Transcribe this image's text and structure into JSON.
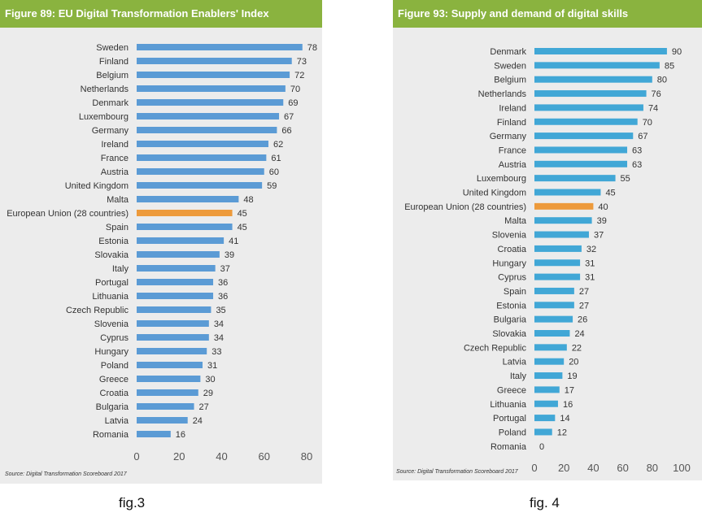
{
  "chart_data": [
    {
      "type": "bar",
      "orientation": "horizontal",
      "title": "Figure 89: EU Digital Transformation Enablers' Index",
      "source": "Source: Digital Transformation Scoreboard 2017",
      "caption": "fig.3",
      "categories": [
        "Sweden",
        "Finland",
        "Belgium",
        "Netherlands",
        "Denmark",
        "Luxembourg",
        "Germany",
        "Ireland",
        "France",
        "Austria",
        "United Kingdom",
        "Malta",
        "European Union (28 countries)",
        "Spain",
        "Estonia",
        "Slovakia",
        "Italy",
        "Portugal",
        "Lithuania",
        "Czech Republic",
        "Slovenia",
        "Cyprus",
        "Hungary",
        "Poland",
        "Greece",
        "Croatia",
        "Bulgaria",
        "Latvia",
        "Romania"
      ],
      "values": [
        78,
        73,
        72,
        70,
        69,
        67,
        66,
        62,
        61,
        60,
        59,
        48,
        45,
        45,
        41,
        39,
        37,
        36,
        36,
        35,
        34,
        34,
        33,
        31,
        30,
        29,
        27,
        24,
        16
      ],
      "highlight": "European Union (28 countries)",
      "xlim": [
        0,
        80
      ],
      "xticks": [
        0,
        20,
        40,
        60,
        80
      ],
      "bar_color": "#5b9bd5",
      "highlight_color": "#ed9a3b",
      "grid": false
    },
    {
      "type": "bar",
      "orientation": "horizontal",
      "title": "Figure 93: Supply and demand of digital skills",
      "source": "Source: Digital Transformation Scoreboard 2017",
      "caption": "fig. 4",
      "categories": [
        "Denmark",
        "Sweden",
        "Belgium",
        "Netherlands",
        "Ireland",
        "Finland",
        "Germany",
        "France",
        "Austria",
        "Luxembourg",
        "United Kingdom",
        "European Union (28 countries)",
        "Malta",
        "Slovenia",
        "Croatia",
        "Hungary",
        "Cyprus",
        "Spain",
        "Estonia",
        "Bulgaria",
        "Slovakia",
        "Czech Republic",
        "Latvia",
        "Italy",
        "Greece",
        "Lithuania",
        "Portugal",
        "Poland",
        "Romania"
      ],
      "values": [
        90,
        85,
        80,
        76,
        74,
        70,
        67,
        63,
        63,
        55,
        45,
        40,
        39,
        37,
        32,
        31,
        31,
        27,
        27,
        26,
        24,
        22,
        20,
        19,
        17,
        16,
        14,
        12,
        0
      ],
      "highlight": "European Union (28 countries)",
      "xlim": [
        0,
        100
      ],
      "xticks": [
        0,
        20,
        40,
        60,
        80,
        100
      ],
      "bar_color": "#41a7d6",
      "highlight_color": "#ed9a3b",
      "grid": false
    }
  ]
}
